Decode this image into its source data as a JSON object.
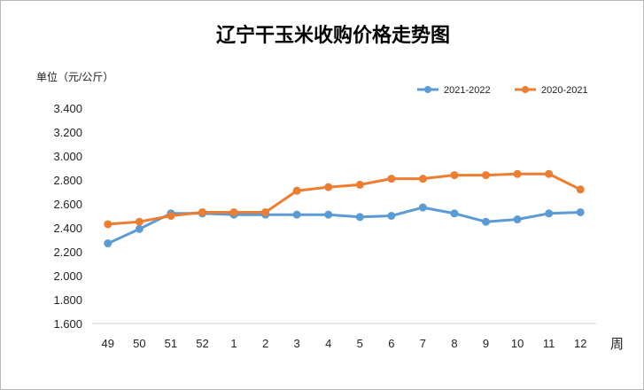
{
  "chart_data": {
    "type": "line",
    "title": "辽宁干玉米收购价格走势图",
    "ylabel": "单位（元/公斤）",
    "xlabel": "周",
    "categories": [
      "49",
      "50",
      "51",
      "52",
      "1",
      "2",
      "3",
      "4",
      "5",
      "6",
      "7",
      "8",
      "9",
      "10",
      "11",
      "12"
    ],
    "ylim": [
      1.6,
      3.4
    ],
    "yticks": [
      "3.400",
      "3.200",
      "3.000",
      "2.800",
      "2.600",
      "2.400",
      "2.200",
      "2.000",
      "1.800",
      "1.600"
    ],
    "grid": false,
    "legend_position": "top-right",
    "series": [
      {
        "name": "2021-2022",
        "color": "#5b9bd5",
        "values": [
          2.27,
          2.39,
          2.52,
          2.52,
          2.51,
          2.51,
          2.51,
          2.51,
          2.49,
          2.5,
          2.57,
          2.52,
          2.45,
          2.47,
          2.52,
          2.53
        ]
      },
      {
        "name": "2020-2021",
        "color": "#ed7d31",
        "values": [
          2.43,
          2.45,
          2.5,
          2.53,
          2.53,
          2.53,
          2.71,
          2.74,
          2.76,
          2.81,
          2.81,
          2.84,
          2.84,
          2.85,
          2.85,
          2.72
        ]
      }
    ]
  }
}
